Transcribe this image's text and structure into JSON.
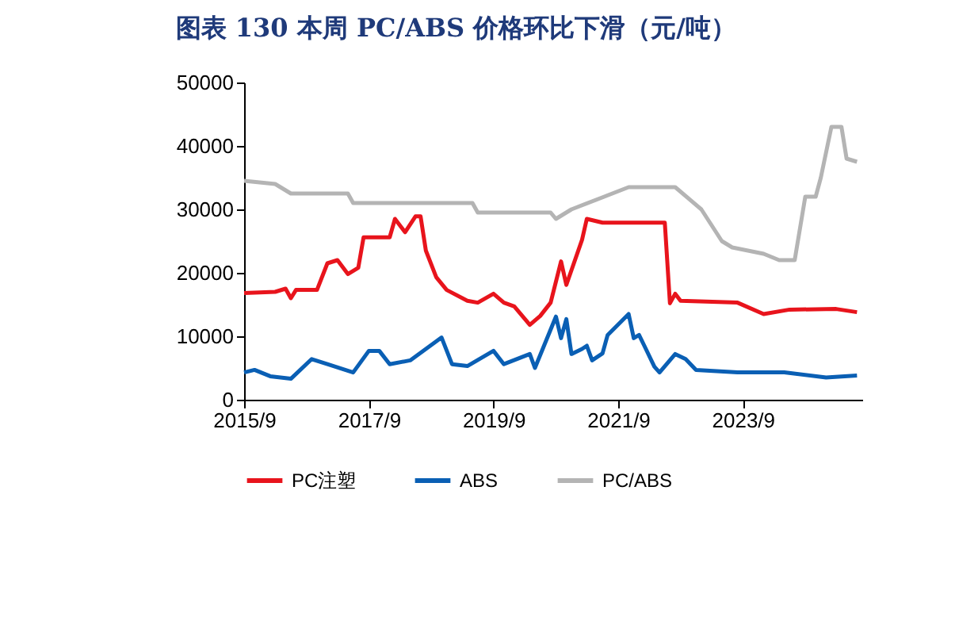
{
  "chart_data": {
    "type": "line",
    "title": "图表 130   本周 PC/ABS 价格环比下滑（元/吨）",
    "xlim": [
      "2015-09",
      "2025-08"
    ],
    "xticks": [
      {
        "value": "2015-09",
        "label": "2015/9"
      },
      {
        "value": "2017-09",
        "label": "2017/9"
      },
      {
        "value": "2019-09",
        "label": "2019/9"
      },
      {
        "value": "2021-09",
        "label": "2021/9"
      },
      {
        "value": "2023-09",
        "label": "2023/9"
      }
    ],
    "ylim": [
      0,
      50000
    ],
    "yticks": [
      0,
      {
        "value": 10000,
        "label": "10000"
      },
      {
        "value": 20000,
        "label": "20000"
      },
      {
        "value": 30000,
        "label": "30000"
      },
      {
        "value": 40000,
        "label": "40000"
      },
      {
        "value": 50000,
        "label": "50000"
      }
    ],
    "grid": false,
    "legend": "bottom",
    "marker": "none",
    "line_style": "solid",
    "series": [
      {
        "name": "PC注塑",
        "color": "#e8141c",
        "x": [
          "2015-09",
          "2016-03",
          "2016-05",
          "2016-06",
          "2016-07",
          "2016-11",
          "2017-01",
          "2017-03",
          "2017-05",
          "2017-07",
          "2017-08",
          "2018-01",
          "2018-02",
          "2018-04",
          "2018-06",
          "2018-07",
          "2018-08",
          "2018-10",
          "2018-12",
          "2019-04",
          "2019-06",
          "2019-09",
          "2019-11",
          "2020-01",
          "2020-04",
          "2020-06",
          "2020-08",
          "2020-10",
          "2020-11",
          "2021-02",
          "2021-03",
          "2021-06",
          "2022-06",
          "2022-07",
          "2022-08",
          "2022-09",
          "2023-08",
          "2024-01",
          "2024-06",
          "2025-03",
          "2025-07"
        ],
        "values": [
          16800,
          17000,
          17500,
          16000,
          17300,
          17300,
          21500,
          22000,
          19800,
          20800,
          25600,
          25600,
          28500,
          26400,
          28900,
          28900,
          23500,
          19300,
          17300,
          15600,
          15300,
          16700,
          15300,
          14700,
          11800,
          13200,
          15300,
          21800,
          18100,
          25200,
          28500,
          27900,
          27900,
          15200,
          16700,
          15600,
          15300,
          13500,
          14200,
          14300,
          13800
        ]
      },
      {
        "name": "ABS",
        "color": "#0a5fb4",
        "x": [
          "2015-09",
          "2015-11",
          "2016-02",
          "2016-06",
          "2016-10",
          "2017-01",
          "2017-06",
          "2017-09",
          "2017-11",
          "2018-01",
          "2018-05",
          "2018-08",
          "2018-11",
          "2019-01",
          "2019-04",
          "2019-09",
          "2019-11",
          "2020-04",
          "2020-05",
          "2020-09",
          "2020-10",
          "2020-11",
          "2020-12",
          "2021-02",
          "2021-03",
          "2021-04",
          "2021-06",
          "2021-07",
          "2021-11",
          "2021-12",
          "2022-01",
          "2022-02",
          "2022-04",
          "2022-05",
          "2022-08",
          "2022-10",
          "2022-12",
          "2023-08",
          "2024-05",
          "2025-01",
          "2025-07"
        ],
        "values": [
          4300,
          4700,
          3700,
          3300,
          6400,
          5600,
          4300,
          7700,
          7700,
          5600,
          6200,
          8000,
          9800,
          5600,
          5300,
          7700,
          5600,
          7200,
          5000,
          13100,
          9700,
          12700,
          7200,
          8000,
          8500,
          6200,
          7300,
          10200,
          13500,
          9700,
          10200,
          8500,
          5200,
          4300,
          7200,
          6400,
          4700,
          4300,
          4300,
          3500,
          3800
        ]
      },
      {
        "name": "PC/ABS",
        "color": "#b4b4b4",
        "x": [
          "2015-09",
          "2016-03",
          "2016-06",
          "2017-05",
          "2017-06",
          "2019-05",
          "2019-06",
          "2020-08",
          "2020-09",
          "2020-12",
          "2021-11",
          "2022-08",
          "2023-01",
          "2023-05",
          "2023-07",
          "2024-01",
          "2024-04",
          "2024-07",
          "2024-09",
          "2024-11",
          "2024-12",
          "2025-02",
          "2025-04",
          "2025-05",
          "2025-07"
        ],
        "values": [
          34500,
          34000,
          32500,
          32500,
          31000,
          31000,
          29500,
          29500,
          28500,
          30000,
          33500,
          33500,
          30000,
          25000,
          24000,
          23000,
          22000,
          22000,
          32000,
          32000,
          35000,
          43000,
          43000,
          38000,
          37500
        ]
      }
    ]
  }
}
